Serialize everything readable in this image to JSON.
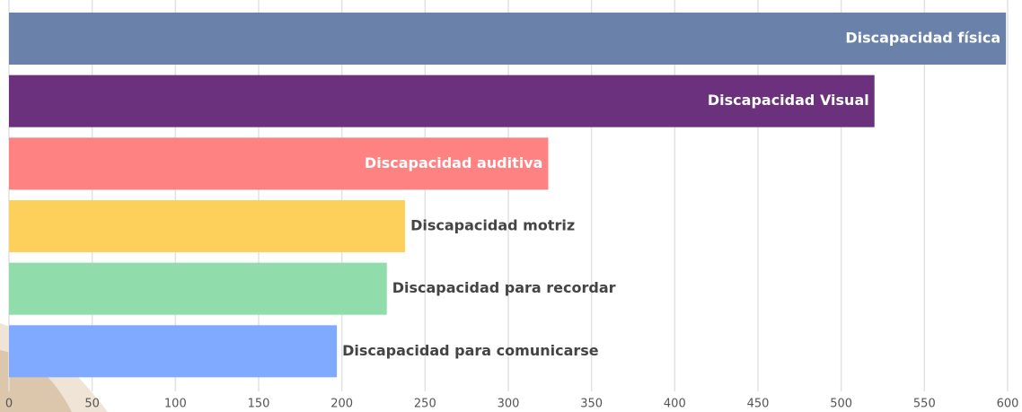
{
  "chart_data": {
    "type": "bar",
    "orientation": "horizontal",
    "categories": [
      "Discapacidad física",
      "Discapacidad Visual",
      "Discapacidad auditiva",
      "Discapacidad motriz",
      "Discapacidad para recordar",
      "Discapacidad para comunicarse"
    ],
    "values": [
      599,
      520,
      324,
      238,
      227,
      197
    ],
    "colors": [
      "#6a82aa",
      "#6c317c",
      "#ff8282",
      "#fdd05c",
      "#90dcab",
      "#80aaff"
    ],
    "xlim": [
      0,
      600
    ],
    "xticks": [
      0,
      50,
      100,
      150,
      200,
      250,
      300,
      350,
      400,
      450,
      500,
      550,
      600
    ],
    "grid": true
  }
}
